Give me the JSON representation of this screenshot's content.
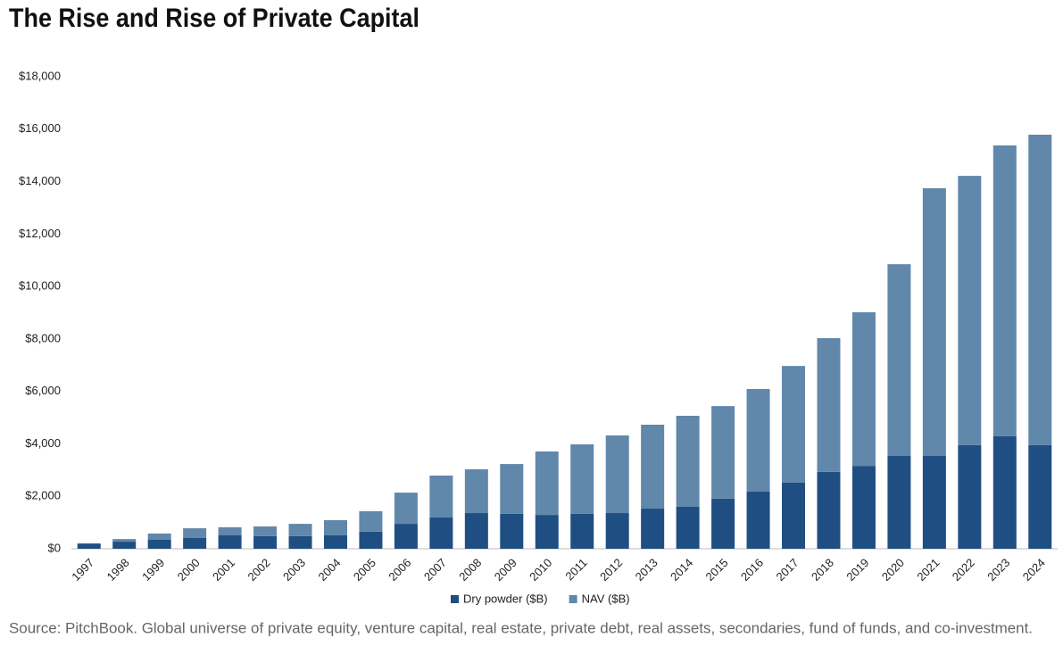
{
  "chart_data": {
    "type": "stacked-bar",
    "title": "The Rise and Rise of Private Capital",
    "source": "Source: PitchBook. Global universe of private equity, venture capital, real estate, private debt, real assets, secondaries, fund of funds, and co-investment.",
    "categories": [
      "1997",
      "1998",
      "1999",
      "2000",
      "2001",
      "2002",
      "2003",
      "2004",
      "2005",
      "2006",
      "2007",
      "2008",
      "2009",
      "2010",
      "2011",
      "2012",
      "2013",
      "2014",
      "2015",
      "2016",
      "2017",
      "2018",
      "2019",
      "2020",
      "2021",
      "2022",
      "2023",
      "2024"
    ],
    "series": [
      {
        "name": "Dry powder ($B)",
        "color": "#1f4e82",
        "values": [
          200,
          270,
          340,
          410,
          510,
          480,
          480,
          510,
          650,
          950,
          1190,
          1360,
          1330,
          1290,
          1330,
          1360,
          1530,
          1600,
          1910,
          2180,
          2520,
          2930,
          3160,
          3540,
          3540,
          3950,
          4290,
          3950
        ]
      },
      {
        "name": "NAV ($B)",
        "color": "#6187ab",
        "values": [
          0,
          100,
          240,
          370,
          310,
          370,
          470,
          580,
          780,
          1190,
          1600,
          1670,
          1900,
          2420,
          2650,
          2960,
          3200,
          3470,
          3530,
          3910,
          4450,
          5100,
          5860,
          7310,
          10210,
          10270,
          11090,
          11840
        ]
      }
    ],
    "ylim": [
      0,
      18000
    ],
    "yticks": [
      {
        "value": 0,
        "label": "$0"
      },
      {
        "value": 2000,
        "label": "$2,000"
      },
      {
        "value": 4000,
        "label": "$4,000"
      },
      {
        "value": 6000,
        "label": "$6,000"
      },
      {
        "value": 8000,
        "label": "$8,000"
      },
      {
        "value": 10000,
        "label": "$10,000"
      },
      {
        "value": 12000,
        "label": "$12,000"
      },
      {
        "value": 14000,
        "label": "$14,000"
      },
      {
        "value": 16000,
        "label": "$16,000"
      },
      {
        "value": 18000,
        "label": "$18,000"
      }
    ],
    "legend": "bottom"
  }
}
